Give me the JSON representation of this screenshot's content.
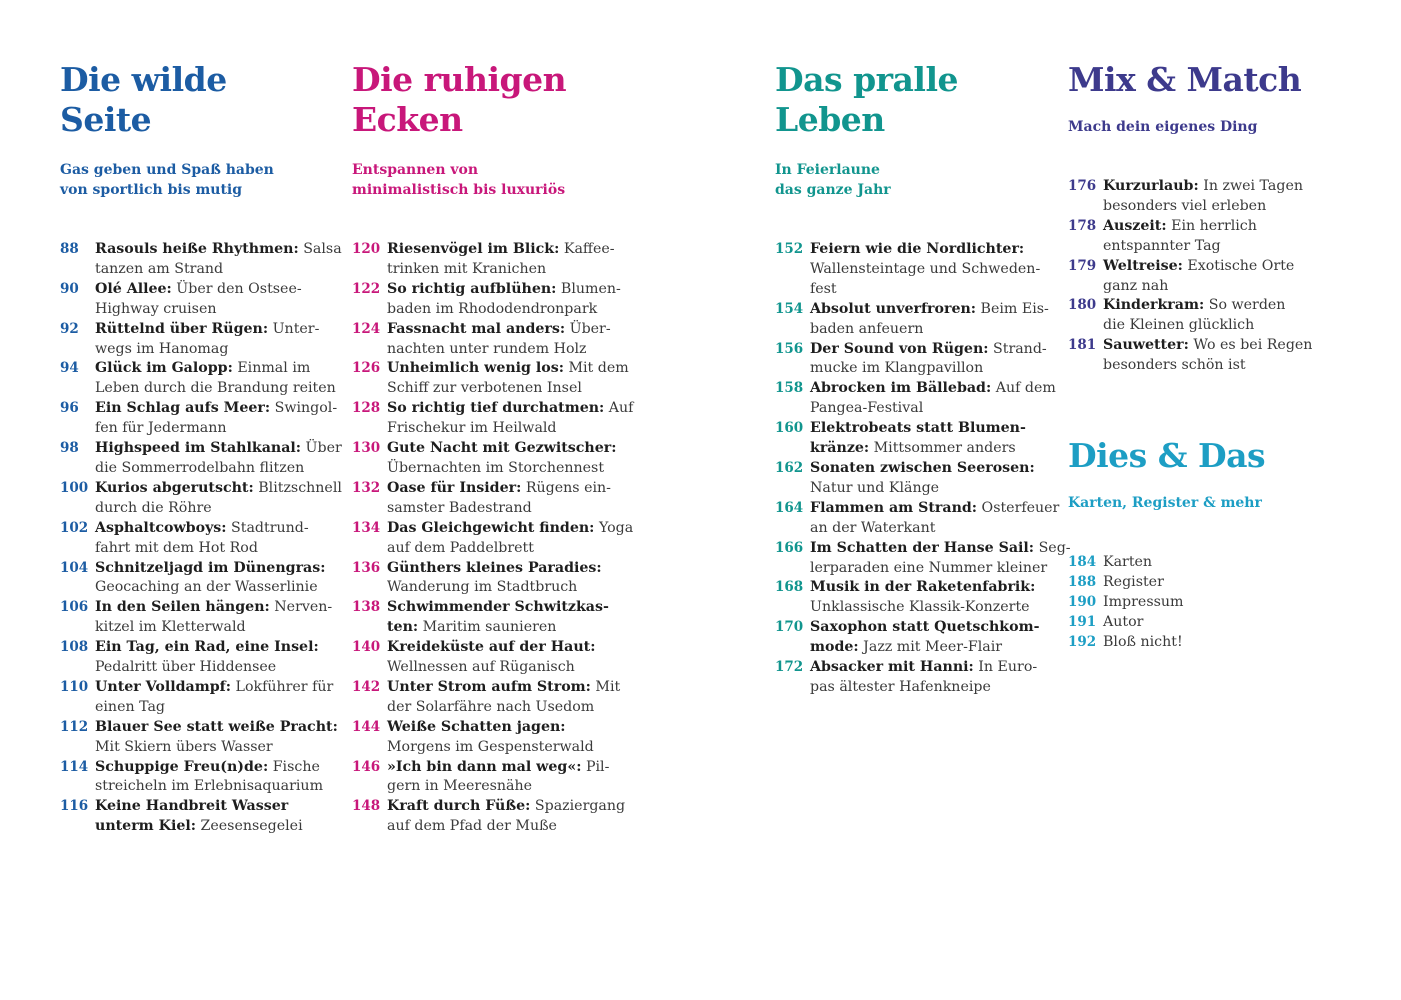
{
  "colors": {
    "wild": "#1c5ca3",
    "calm": "#c8177a",
    "life": "#11958e",
    "mix": "#3d3a8c",
    "misc": "#1d9ec4",
    "text": "#3a3a3a"
  },
  "sections": [
    {
      "title_lines": [
        "Die wilde",
        "Seite"
      ],
      "subtitle_lines": [
        "Gas geben und Spaß haben",
        "von sportlich bis mutig"
      ],
      "entries": [
        {
          "page": "88",
          "lines": [
            {
              "b": "Rasouls heiße Rhythmen:",
              "t": " Salsa"
            },
            {
              "b": "",
              "t": "tanzen am Strand"
            }
          ]
        },
        {
          "page": "90",
          "lines": [
            {
              "b": "Olé Allee:",
              "t": " Über den Ostsee-"
            },
            {
              "b": "",
              "t": "Highway cruisen"
            }
          ]
        },
        {
          "page": "92",
          "lines": [
            {
              "b": "Rüttelnd über Rügen:",
              "t": " Unter-"
            },
            {
              "b": "",
              "t": "wegs im Hanomag"
            }
          ]
        },
        {
          "page": "94",
          "lines": [
            {
              "b": "Glück im Galopp:",
              "t": " Einmal im"
            },
            {
              "b": "",
              "t": "Leben durch die Brandung reiten"
            }
          ]
        },
        {
          "page": "96",
          "lines": [
            {
              "b": "Ein Schlag aufs Meer:",
              "t": " Swingol-"
            },
            {
              "b": "",
              "t": "fen für Jedermann"
            }
          ]
        },
        {
          "page": "98",
          "lines": [
            {
              "b": "Highspeed im Stahlkanal:",
              "t": " Über"
            },
            {
              "b": "",
              "t": "die Sommerrodelbahn flitzen"
            }
          ]
        },
        {
          "page": "100",
          "lines": [
            {
              "b": "Kurios abgerutscht:",
              "t": " Blitzschnell"
            },
            {
              "b": "",
              "t": "durch die Röhre"
            }
          ]
        },
        {
          "page": "102",
          "lines": [
            {
              "b": "Asphaltcowboys:",
              "t": " Stadtrund-"
            },
            {
              "b": "",
              "t": "fahrt mit dem Hot Rod"
            }
          ]
        },
        {
          "page": "104",
          "lines": [
            {
              "b": "Schnitzeljagd im Dünengras:",
              "t": ""
            },
            {
              "b": "",
              "t": "Geocaching an der Wasserlinie"
            }
          ]
        },
        {
          "page": "106",
          "lines": [
            {
              "b": "In den Seilen hängen:",
              "t": " Nerven-"
            },
            {
              "b": "",
              "t": "kitzel im Kletterwald"
            }
          ]
        },
        {
          "page": "108",
          "lines": [
            {
              "b": "Ein Tag, ein Rad, eine Insel:",
              "t": ""
            },
            {
              "b": "",
              "t": "Pedalritt über Hiddensee"
            }
          ]
        },
        {
          "page": "110",
          "lines": [
            {
              "b": "Unter Volldampf:",
              "t": " Lokführer für"
            },
            {
              "b": "",
              "t": "einen Tag"
            }
          ]
        },
        {
          "page": "112",
          "lines": [
            {
              "b": "Blauer See statt weiße Pracht:",
              "t": ""
            },
            {
              "b": "",
              "t": "Mit Skiern übers Wasser"
            }
          ]
        },
        {
          "page": "114",
          "lines": [
            {
              "b": "Schuppige Freu(n)de:",
              "t": " Fische"
            },
            {
              "b": "",
              "t": "streicheln im Erlebnisaquarium"
            }
          ]
        },
        {
          "page": "116",
          "lines": [
            {
              "b": "Keine Handbreit Wasser",
              "t": ""
            },
            {
              "b": "unterm Kiel:",
              "t": " Zeesensegelei"
            }
          ]
        }
      ]
    },
    {
      "title_lines": [
        "Die ruhigen",
        "Ecken"
      ],
      "subtitle_lines": [
        "Entspannen von",
        "minimalistisch bis luxuriös"
      ],
      "entries": [
        {
          "page": "120",
          "lines": [
            {
              "b": "Riesenvögel im Blick:",
              "t": " Kaffee-"
            },
            {
              "b": "",
              "t": "trinken mit Kranichen"
            }
          ]
        },
        {
          "page": "122",
          "lines": [
            {
              "b": "So richtig aufblühen:",
              "t": " Blumen-"
            },
            {
              "b": "",
              "t": "baden im Rhododendronpark"
            }
          ]
        },
        {
          "page": "124",
          "lines": [
            {
              "b": "Fassnacht mal anders:",
              "t": " Über-"
            },
            {
              "b": "",
              "t": "nachten unter rundem Holz"
            }
          ]
        },
        {
          "page": "126",
          "lines": [
            {
              "b": "Unheimlich wenig los:",
              "t": " Mit dem"
            },
            {
              "b": "",
              "t": "Schiff zur verbotenen Insel"
            }
          ]
        },
        {
          "page": "128",
          "lines": [
            {
              "b": "So richtig tief durchatmen:",
              "t": " Auf"
            },
            {
              "b": "",
              "t": "Frischekur im Heilwald"
            }
          ]
        },
        {
          "page": "130",
          "lines": [
            {
              "b": "Gute Nacht mit Gezwitscher:",
              "t": ""
            },
            {
              "b": "",
              "t": "Übernachten im Storchennest"
            }
          ]
        },
        {
          "page": "132",
          "lines": [
            {
              "b": "Oase für Insider:",
              "t": " Rügens ein-"
            },
            {
              "b": "",
              "t": "samster Badestrand"
            }
          ]
        },
        {
          "page": "134",
          "lines": [
            {
              "b": "Das Gleichgewicht finden:",
              "t": " Yoga"
            },
            {
              "b": "",
              "t": "auf dem Paddelbrett"
            }
          ]
        },
        {
          "page": "136",
          "lines": [
            {
              "b": "Günthers kleines Paradies:",
              "t": ""
            },
            {
              "b": "",
              "t": "Wanderung im Stadtbruch"
            }
          ]
        },
        {
          "page": "138",
          "lines": [
            {
              "b": "Schwimmender Schwitzkas-",
              "t": ""
            },
            {
              "b": "ten:",
              "t": " Maritim saunieren"
            }
          ]
        },
        {
          "page": "140",
          "lines": [
            {
              "b": "Kreideküste auf der Haut:",
              "t": ""
            },
            {
              "b": "",
              "t": "Wellnessen auf Rüganisch"
            }
          ]
        },
        {
          "page": "142",
          "lines": [
            {
              "b": "Unter Strom aufm Strom:",
              "t": " Mit"
            },
            {
              "b": "",
              "t": "der Solarfähre nach Usedom"
            }
          ]
        },
        {
          "page": "144",
          "lines": [
            {
              "b": "Weiße Schatten jagen:",
              "t": ""
            },
            {
              "b": "",
              "t": "Morgens im Gespensterwald"
            }
          ]
        },
        {
          "page": "146",
          "lines": [
            {
              "b": "»Ich bin dann mal weg«:",
              "t": " Pil-"
            },
            {
              "b": "",
              "t": "gern in Meeresnähe"
            }
          ]
        },
        {
          "page": "148",
          "lines": [
            {
              "b": "Kraft durch Füße:",
              "t": " Spaziergang"
            },
            {
              "b": "",
              "t": "auf dem Pfad der Muße"
            }
          ]
        }
      ]
    },
    {
      "title_lines": [
        "Das pralle",
        "Leben"
      ],
      "subtitle_lines": [
        "In Feierlaune",
        "das ganze Jahr"
      ],
      "entries": [
        {
          "page": "152",
          "lines": [
            {
              "b": "Feiern wie die Nordlichter:",
              "t": ""
            },
            {
              "b": "",
              "t": "Wallensteintage und Schweden-"
            },
            {
              "b": "",
              "t": "fest"
            }
          ]
        },
        {
          "page": "154",
          "lines": [
            {
              "b": "Absolut unverfroren:",
              "t": " Beim Eis-"
            },
            {
              "b": "",
              "t": "baden anfeuern"
            }
          ]
        },
        {
          "page": "156",
          "lines": [
            {
              "b": "Der Sound von Rügen:",
              "t": " Strand-"
            },
            {
              "b": "",
              "t": "mucke im Klangpavillon"
            }
          ]
        },
        {
          "page": "158",
          "lines": [
            {
              "b": "Abrocken im Bällebad:",
              "t": " Auf dem"
            },
            {
              "b": "",
              "t": "Pangea-Festival"
            }
          ]
        },
        {
          "page": "160",
          "lines": [
            {
              "b": "Elektrobeats statt Blumen-",
              "t": ""
            },
            {
              "b": "kränze:",
              "t": " Mittsommer anders"
            }
          ]
        },
        {
          "page": "162",
          "lines": [
            {
              "b": "Sonaten zwischen Seerosen:",
              "t": ""
            },
            {
              "b": "",
              "t": "Natur und Klänge"
            }
          ]
        },
        {
          "page": "164",
          "lines": [
            {
              "b": "Flammen am Strand:",
              "t": " Osterfeuer"
            },
            {
              "b": "",
              "t": "an der Waterkant"
            }
          ]
        },
        {
          "page": "166",
          "lines": [
            {
              "b": "Im Schatten der Hanse Sail:",
              "t": " Seg-"
            },
            {
              "b": "",
              "t": "lerparaden eine Nummer kleiner"
            }
          ]
        },
        {
          "page": "168",
          "lines": [
            {
              "b": "Musik in der Raketenfabrik:",
              "t": ""
            },
            {
              "b": "",
              "t": "Unklassische Klassik-Konzerte"
            }
          ]
        },
        {
          "page": "170",
          "lines": [
            {
              "b": "Saxophon statt Quetschkom-",
              "t": ""
            },
            {
              "b": "mode:",
              "t": " Jazz mit Meer-Flair"
            }
          ]
        },
        {
          "page": "172",
          "lines": [
            {
              "b": "Absacker mit Hanni:",
              "t": " In Euro-"
            },
            {
              "b": "",
              "t": "pas ältester Hafenkneipe"
            }
          ]
        }
      ]
    },
    {
      "title_lines": [
        "Mix & Match"
      ],
      "subtitle_lines": [
        "Mach dein eigenes Ding"
      ],
      "entries": [
        {
          "page": "176",
          "lines": [
            {
              "b": "Kurzurlaub:",
              "t": " In zwei Tagen"
            },
            {
              "b": "",
              "t": "besonders viel erleben"
            }
          ]
        },
        {
          "page": "178",
          "lines": [
            {
              "b": "Auszeit:",
              "t": " Ein herrlich"
            },
            {
              "b": "",
              "t": "entspannter Tag"
            }
          ]
        },
        {
          "page": "179",
          "lines": [
            {
              "b": "Weltreise:",
              "t": " Exotische Orte"
            },
            {
              "b": "",
              "t": "ganz nah"
            }
          ]
        },
        {
          "page": "180",
          "lines": [
            {
              "b": "Kinderkram:",
              "t": " So werden"
            },
            {
              "b": "",
              "t": "die Kleinen glücklich"
            }
          ]
        },
        {
          "page": "181",
          "lines": [
            {
              "b": "Sauwetter:",
              "t": " Wo es bei Regen"
            },
            {
              "b": "",
              "t": "besonders schön ist"
            }
          ]
        }
      ]
    },
    {
      "title_lines": [
        "Dies & Das"
      ],
      "subtitle_lines": [
        "Karten, Register & mehr"
      ],
      "entries": [
        {
          "page": "184",
          "lines": [
            {
              "b": "",
              "t": "Karten"
            }
          ]
        },
        {
          "page": "188",
          "lines": [
            {
              "b": "",
              "t": "Register"
            }
          ]
        },
        {
          "page": "190",
          "lines": [
            {
              "b": "",
              "t": "Impressum"
            }
          ]
        },
        {
          "page": "191",
          "lines": [
            {
              "b": "",
              "t": "Autor"
            }
          ]
        },
        {
          "page": "192",
          "lines": [
            {
              "b": "",
              "t": "Bloß nicht!"
            }
          ]
        }
      ]
    }
  ]
}
